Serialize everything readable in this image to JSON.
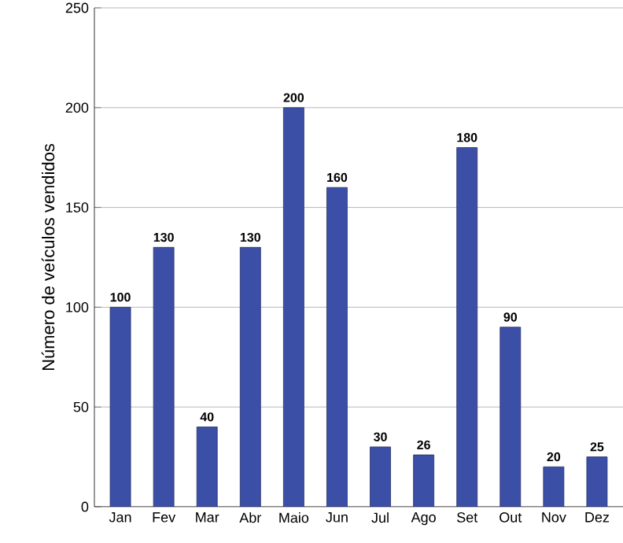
{
  "chart_data": {
    "type": "bar",
    "ylabel": "Número de veículos vendidos",
    "categories": [
      "Jan",
      "Fev",
      "Mar",
      "Abr",
      "Maio",
      "Jun",
      "Jul",
      "Ago",
      "Set",
      "Out",
      "Nov",
      "Dez"
    ],
    "values": [
      100,
      130,
      40,
      130,
      200,
      160,
      30,
      26,
      180,
      90,
      20,
      25
    ],
    "color": "#3c4fa6",
    "ylim": [
      0,
      250
    ],
    "yticks": [
      0,
      50,
      100,
      150,
      200,
      250
    ],
    "grid": "y",
    "data_labels": true
  }
}
